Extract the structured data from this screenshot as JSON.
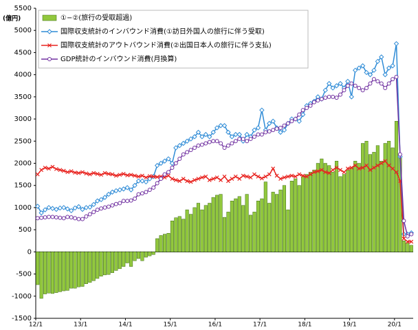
{
  "chart_data": {
    "type": "bar-line",
    "y_unit_label": "(億円)",
    "categories": [
      "12/1",
      null,
      null,
      null,
      null,
      null,
      null,
      null,
      null,
      null,
      null,
      null,
      "13/1",
      null,
      null,
      null,
      null,
      null,
      null,
      null,
      null,
      null,
      null,
      null,
      "14/1",
      null,
      null,
      null,
      null,
      null,
      null,
      null,
      null,
      null,
      null,
      null,
      "15/1",
      null,
      null,
      null,
      null,
      null,
      null,
      null,
      null,
      null,
      null,
      null,
      "16/1",
      null,
      null,
      null,
      null,
      null,
      null,
      null,
      null,
      null,
      null,
      null,
      "17/1",
      null,
      null,
      null,
      null,
      null,
      null,
      null,
      null,
      null,
      null,
      null,
      "18/1",
      null,
      null,
      null,
      null,
      null,
      null,
      null,
      null,
      null,
      null,
      null,
      "19/1",
      null,
      null,
      null,
      null,
      null,
      null,
      null,
      null,
      null,
      null,
      null,
      "20/1",
      null,
      null,
      null,
      null
    ],
    "series": [
      {
        "name": "①−②(旅行の受取超過)",
        "kind": "bar",
        "color": "#92c83e",
        "values": [
          -740,
          -1050,
          -950,
          -930,
          -940,
          -920,
          -900,
          -880,
          -870,
          -820,
          -820,
          -790,
          -780,
          -720,
          -690,
          -650,
          -600,
          -550,
          -520,
          -510,
          -470,
          -420,
          -380,
          -330,
          -250,
          -330,
          -200,
          -150,
          -200,
          -120,
          -90,
          -60,
          300,
          370,
          400,
          420,
          700,
          770,
          800,
          740,
          950,
          850,
          1000,
          1100,
          950,
          1050,
          1100,
          1230,
          1280,
          1300,
          780,
          900,
          1150,
          1200,
          1250,
          1050,
          1300,
          830,
          900,
          1150,
          1200,
          1580,
          1100,
          1350,
          1300,
          1400,
          1500,
          950,
          1600,
          1650,
          1500,
          1700,
          1750,
          1800,
          1850,
          2000,
          2100,
          2000,
          1950,
          1800,
          2050,
          1700,
          1750,
          1850,
          1900,
          2050,
          2000,
          2450,
          2500,
          2200,
          2250,
          2400,
          2050,
          2450,
          2500,
          2350,
          2950,
          2200,
          250,
          200,
          150
        ]
      },
      {
        "name": "国際収支統計のインバウンド消費(①訪日外国人の旅行に伴う受取)",
        "kind": "line",
        "marker": "diamond",
        "color": "#2e8bd6",
        "values": [
          1030,
          880,
          950,
          1000,
          980,
          960,
          990,
          1000,
          970,
          930,
          990,
          1020,
          960,
          1000,
          1010,
          1070,
          1150,
          1180,
          1230,
          1300,
          1350,
          1380,
          1400,
          1420,
          1450,
          1400,
          1500,
          1600,
          1600,
          1580,
          1650,
          1700,
          1950,
          2000,
          2050,
          2100,
          2000,
          2350,
          2400,
          2450,
          2500,
          2550,
          2600,
          2700,
          2600,
          2650,
          2600,
          2700,
          2800,
          2850,
          2850,
          2700,
          2600,
          2650,
          2650,
          2500,
          2650,
          2600,
          2750,
          2800,
          3200,
          2750,
          2900,
          2950,
          2800,
          2700,
          2750,
          2900,
          3000,
          3000,
          2950,
          3100,
          3300,
          3350,
          3400,
          3500,
          3450,
          3650,
          3800,
          3700,
          3750,
          3800,
          3700,
          3850,
          3500,
          4100,
          4150,
          4200,
          4050,
          4000,
          4100,
          4300,
          4400,
          4000,
          4150,
          4200,
          4700,
          2150,
          400,
          400,
          430
        ]
      },
      {
        "name": "国際収支統計のアウトバウンド消費(②出国日本人の旅行に伴う支払)",
        "kind": "line",
        "marker": "cross",
        "color": "#e8231f",
        "values": [
          1750,
          1850,
          1900,
          1880,
          1920,
          1870,
          1850,
          1830,
          1800,
          1820,
          1790,
          1780,
          1800,
          1770,
          1750,
          1780,
          1760,
          1740,
          1780,
          1760,
          1750,
          1720,
          1740,
          1760,
          1730,
          1740,
          1720,
          1700,
          1720,
          1680,
          1710,
          1700,
          1690,
          1700,
          1680,
          1720,
          1650,
          1620,
          1600,
          1650,
          1600,
          1580,
          1620,
          1650,
          1680,
          1700,
          1620,
          1650,
          1680,
          1620,
          1700,
          1600,
          1650,
          1700,
          1650,
          1720,
          1700,
          1680,
          1750,
          1700,
          1660,
          1700,
          1750,
          1880,
          1720,
          1650,
          1680,
          1700,
          1720,
          1700,
          1750,
          1720,
          1700,
          1750,
          1800,
          1820,
          1850,
          1800,
          1780,
          1850,
          1900,
          1850,
          1800,
          1880,
          1900,
          1950,
          1880,
          1900,
          1950,
          1850,
          1900,
          1950,
          2000,
          2050,
          1950,
          1880,
          1800,
          1600,
          300,
          230,
          230
        ]
      },
      {
        "name": "GDP統計のインバウンド消費(月換算)",
        "kind": "line",
        "marker": "circle",
        "color": "#7030a0",
        "values": [
          760,
          770,
          780,
          790,
          790,
          780,
          770,
          760,
          790,
          780,
          760,
          740,
          740,
          800,
          850,
          900,
          950,
          980,
          1000,
          1020,
          1050,
          1080,
          1100,
          1150,
          1150,
          1160,
          1200,
          1300,
          1320,
          1350,
          1400,
          1450,
          1550,
          1650,
          1750,
          1800,
          1900,
          2000,
          2100,
          2200,
          2250,
          2300,
          2350,
          2400,
          2420,
          2450,
          2480,
          2500,
          2500,
          2450,
          2350,
          2400,
          2450,
          2500,
          2550,
          2550,
          2500,
          2550,
          2600,
          2650,
          2650,
          2700,
          2720,
          2750,
          2780,
          2800,
          2850,
          2900,
          2950,
          3000,
          3100,
          3200,
          3250,
          3300,
          3380,
          3420,
          3450,
          3480,
          3500,
          3500,
          3480,
          3550,
          3650,
          3750,
          3800,
          3750,
          3700,
          3650,
          3700,
          3800,
          3900,
          3850,
          3800,
          3700,
          3800,
          3900,
          3950,
          2200,
          700,
          350,
          400
        ]
      }
    ],
    "ylim": [
      -1500,
      5500
    ],
    "yticks": [
      -1500,
      -1000,
      -500,
      0,
      500,
      1000,
      1500,
      2000,
      2500,
      3000,
      3500,
      4000,
      4500,
      5000,
      5500
    ],
    "grid": false,
    "legend": "upper left"
  }
}
